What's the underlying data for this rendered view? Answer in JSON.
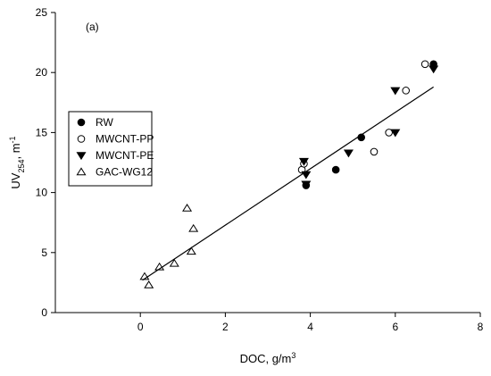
{
  "chart_data": {
    "type": "scatter",
    "annotation": "(a)",
    "xlabel": [
      {
        "text": "DOC, g/m"
      },
      {
        "text": "3",
        "shift": "super"
      }
    ],
    "ylabel": [
      {
        "text": "UV"
      },
      {
        "text": "254",
        "shift": "sub"
      },
      {
        "text": ", m"
      },
      {
        "text": "-1",
        "shift": "super"
      }
    ],
    "xlim": [
      -2,
      8
    ],
    "xticks": [
      0,
      2,
      4,
      6,
      8
    ],
    "ylim": [
      0,
      25
    ],
    "yticks": [
      0,
      5,
      10,
      15,
      20,
      25
    ],
    "legend": "upper left",
    "series": [
      {
        "name": "RW",
        "marker": "circle",
        "filled": true,
        "color": "#000000",
        "x": [
          3.9,
          4.6,
          5.2,
          6.9
        ],
        "values": [
          10.6,
          11.9,
          14.6,
          20.7
        ]
      },
      {
        "name": "MWCNT-PP",
        "marker": "circle",
        "filled": false,
        "color": "#000000",
        "x": [
          3.8,
          3.85,
          5.5,
          5.85,
          6.25,
          6.7
        ],
        "values": [
          11.9,
          12.4,
          13.4,
          15.0,
          18.5,
          20.7
        ]
      },
      {
        "name": "MWCNT-PE",
        "marker": "triangle-down",
        "filled": true,
        "color": "#000000",
        "x": [
          3.85,
          3.9,
          3.9,
          4.9,
          6.0,
          6.0,
          6.9
        ],
        "values": [
          12.6,
          11.5,
          10.7,
          13.3,
          18.5,
          15.0,
          20.3
        ]
      },
      {
        "name": "GAC-WG12",
        "marker": "triangle-up",
        "filled": false,
        "color": "#000000",
        "x": [
          0.1,
          0.2,
          0.45,
          0.8,
          1.1,
          1.2,
          1.25
        ],
        "values": [
          3.0,
          2.3,
          3.8,
          4.1,
          8.7,
          5.1,
          7.0
        ]
      },
      {
        "marker": "line",
        "color": "#000000",
        "x": [
          0.05,
          6.9
        ],
        "values": [
          2.7,
          18.8
        ]
      }
    ]
  }
}
